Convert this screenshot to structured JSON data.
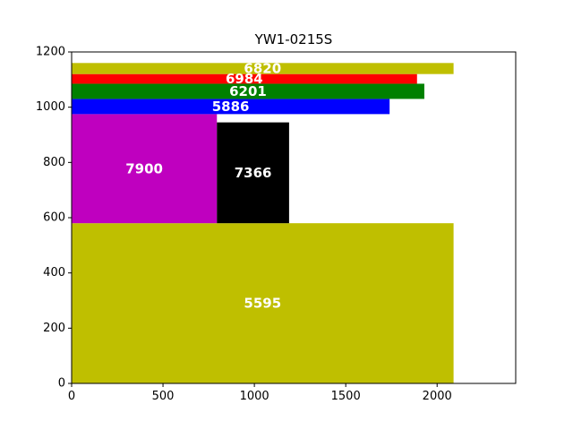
{
  "chart_data": {
    "type": "bar",
    "title": "YW1-0215S",
    "xlabel": "",
    "ylabel": "",
    "xlim": [
      0,
      2430
    ],
    "ylim": [
      0,
      1200
    ],
    "xticks": [
      0,
      500,
      1000,
      1500,
      2000
    ],
    "yticks": [
      0,
      200,
      400,
      600,
      800,
      1000,
      1200
    ],
    "grid": false,
    "rects": [
      {
        "label": "5595",
        "x0": 0,
        "x1": 2090,
        "y0": 0,
        "y1": 580,
        "color": "#bfbf00"
      },
      {
        "label": "7900",
        "x0": 0,
        "x1": 795,
        "y0": 580,
        "y1": 975,
        "color": "#bf00bf"
      },
      {
        "label": "7366",
        "x0": 795,
        "x1": 1190,
        "y0": 580,
        "y1": 945,
        "color": "#000000"
      },
      {
        "label": "5886",
        "x0": 0,
        "x1": 1740,
        "y0": 975,
        "y1": 1030,
        "color": "#0000ff"
      },
      {
        "label": "6201",
        "x0": 0,
        "x1": 1930,
        "y0": 1030,
        "y1": 1085,
        "color": "#008000"
      },
      {
        "label": "6984",
        "x0": 0,
        "x1": 1890,
        "y0": 1085,
        "y1": 1120,
        "color": "#ff0000"
      },
      {
        "label": "6820",
        "x0": 0,
        "x1": 2090,
        "y0": 1120,
        "y1": 1160,
        "color": "#bfbf00"
      }
    ]
  }
}
